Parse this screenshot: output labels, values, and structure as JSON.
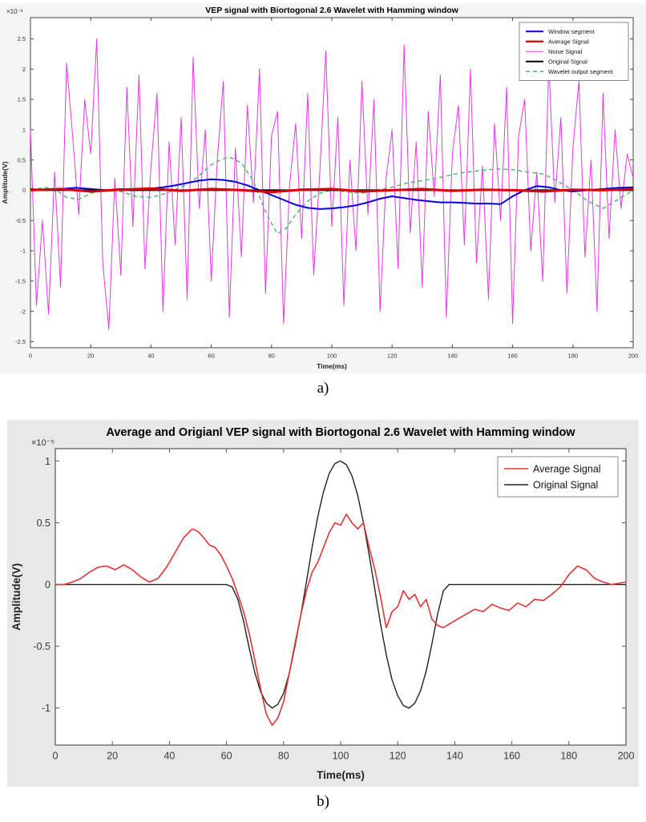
{
  "captions": {
    "fig_a": "a)",
    "fig_b": "b)"
  },
  "chart_data": [
    {
      "type": "line",
      "title": "VEP signal with Biortogonal 2.6 Wavelet with Hamming window",
      "xlabel": "Time(ms)",
      "ylabel": "Amplitude(V)",
      "y_scale_label": "×10⁻³",
      "xlim": [
        0,
        200
      ],
      "ylim": [
        -2.6,
        2.85
      ],
      "xticks": [
        0,
        20,
        40,
        60,
        80,
        100,
        120,
        140,
        160,
        180,
        200
      ],
      "yticks": [
        -2.5,
        -2,
        -1.5,
        -1,
        -0.5,
        0,
        0.5,
        1,
        1.5,
        2,
        2.5
      ],
      "grid": false,
      "legend_position": "top-right",
      "bg": "#f4f5f5",
      "series": [
        {
          "name": "Window segment",
          "color": "#0000e6",
          "width": 2,
          "dash": null,
          "z": 2,
          "x": [
            0,
            5,
            10,
            15,
            20,
            25,
            30,
            35,
            40,
            44,
            48,
            52,
            56,
            60,
            64,
            68,
            72,
            76,
            80,
            84,
            88,
            92,
            96,
            100,
            104,
            108,
            112,
            116,
            120,
            124,
            128,
            132,
            136,
            140,
            144,
            148,
            152,
            156,
            160,
            164,
            168,
            172,
            176,
            180,
            185,
            190,
            195,
            200
          ],
          "y": [
            0.02,
            0,
            0.02,
            0.04,
            0.02,
            0,
            0.02,
            0,
            0.03,
            0.05,
            0.08,
            0.12,
            0.16,
            0.18,
            0.17,
            0.14,
            0.08,
            0,
            -0.08,
            -0.16,
            -0.24,
            -0.29,
            -0.31,
            -0.3,
            -0.28,
            -0.25,
            -0.2,
            -0.14,
            -0.1,
            -0.13,
            -0.16,
            -0.18,
            -0.2,
            -0.2,
            -0.21,
            -0.22,
            -0.22,
            -0.23,
            -0.1,
            0,
            0.07,
            0.05,
            0,
            -0.02,
            0,
            0.02,
            0.04,
            0.05
          ]
        },
        {
          "name": "Average Signal",
          "color": "#dd0000",
          "width": 3,
          "dash": null,
          "z": 4,
          "x": [
            0,
            10,
            20,
            30,
            40,
            50,
            60,
            70,
            80,
            90,
            100,
            110,
            120,
            130,
            140,
            150,
            160,
            170,
            180,
            190,
            200
          ],
          "y": [
            0,
            0.02,
            -0.02,
            0.01,
            0.03,
            -0.01,
            0.02,
            0,
            -0.03,
            0.01,
            0.02,
            -0.02,
            0,
            0.02,
            -0.01,
            0.01,
            0,
            -0.02,
            0.01,
            0,
            0.02
          ]
        },
        {
          "name": "Noise Signal",
          "color": "#e736e7",
          "width": 1,
          "dash": null,
          "z": 0,
          "x_start": 0,
          "x_step": 2,
          "y": [
            1.0,
            -1.9,
            -0.5,
            -2.05,
            0.3,
            -1.6,
            2.1,
            0.9,
            -0.4,
            1.5,
            0.6,
            2.5,
            -1.2,
            -2.3,
            0.2,
            -1.4,
            1.7,
            -0.6,
            1.9,
            -1.3,
            0.4,
            1.6,
            -2.0,
            0.8,
            -0.9,
            1.2,
            -1.8,
            2.2,
            -0.3,
            1.0,
            -1.5,
            0.5,
            1.8,
            -2.1,
            0.7,
            -1.1,
            1.4,
            -0.2,
            2.0,
            -1.7,
            0.9,
            1.3,
            -2.2,
            0.1,
            1.1,
            -0.8,
            1.6,
            -1.4,
            0.3,
            2.3,
            -0.6,
            1.2,
            -1.9,
            0.5,
            -1.0,
            1.8,
            -0.4,
            1.5,
            -2.0,
            0.2,
            1.0,
            -1.3,
            2.4,
            -0.7,
            0.8,
            -1.6,
            1.3,
            -0.1,
            1.9,
            -2.1,
            0.6,
            1.4,
            -0.9,
            2.0,
            -1.2,
            0.4,
            -1.8,
            1.1,
            -0.5,
            1.7,
            -2.2,
            0.9,
            1.5,
            -1.0,
            0.3,
            -1.5,
            2.1,
            -0.2,
            1.2,
            -1.7,
            0.7,
            1.8,
            -1.1,
            0.5,
            -2.0,
            1.6,
            -0.8,
            1.0,
            -0.3,
            0.6,
            0.2
          ]
        },
        {
          "name": "Original Signal",
          "color": "#000000",
          "width": 2,
          "dash": null,
          "z": 3,
          "x": [
            0,
            50,
            100,
            150,
            200
          ],
          "y": [
            0,
            0,
            0,
            0,
            0
          ]
        },
        {
          "name": "Wavelet output segment",
          "color": "#3dbb63",
          "width": 1.4,
          "dash": "5 4",
          "z": 1,
          "x": [
            0,
            5,
            8,
            12,
            16,
            20,
            25,
            30,
            35,
            40,
            45,
            50,
            55,
            60,
            63,
            66,
            70,
            74,
            78,
            80,
            82,
            85,
            88,
            92,
            96,
            100,
            105,
            110,
            115,
            120,
            125,
            130,
            135,
            140,
            145,
            150,
            155,
            160,
            165,
            170,
            175,
            180,
            185,
            190,
            195,
            200
          ],
          "y": [
            0,
            0.05,
            0.02,
            -0.12,
            -0.15,
            -0.05,
            0,
            -0.02,
            -0.1,
            -0.12,
            -0.05,
            0.05,
            0.2,
            0.42,
            0.5,
            0.55,
            0.45,
            0.15,
            -0.35,
            -0.55,
            -0.72,
            -0.62,
            -0.4,
            -0.18,
            -0.05,
            0,
            -0.03,
            -0.05,
            0,
            0.05,
            0.12,
            0.16,
            0.2,
            0.26,
            0.3,
            0.33,
            0.35,
            0.34,
            0.3,
            0.27,
            0.15,
            0,
            -0.18,
            -0.3,
            -0.15,
            0
          ]
        }
      ]
    },
    {
      "type": "line",
      "title": "Average and Origianl VEP signal with Biortogonal 2.6 Wavelet with Hamming window",
      "xlabel": "Time(ms)",
      "ylabel": "Amplitude(V)",
      "y_scale_label": "×10⁻⁵",
      "xlim": [
        0,
        200
      ],
      "ylim": [
        -1.3,
        1.1
      ],
      "xticks": [
        0,
        20,
        40,
        60,
        80,
        100,
        120,
        140,
        160,
        180,
        200
      ],
      "yticks": [
        -1,
        -0.5,
        0,
        0.5,
        1
      ],
      "grid": false,
      "legend_position": "top-right",
      "bg": "#e7e8e8",
      "series": [
        {
          "name": "Average Signal",
          "color": "#e23333",
          "width": 1.6,
          "dash": null,
          "z": 2,
          "x": [
            0,
            3,
            6,
            9,
            12,
            15,
            18,
            21,
            24,
            27,
            30,
            33,
            36,
            39,
            42,
            45,
            48,
            50,
            52,
            54,
            56,
            58,
            60,
            62,
            64,
            66,
            68,
            70,
            72,
            74,
            76,
            78,
            80,
            82,
            84,
            86,
            88,
            90,
            92,
            94,
            96,
            98,
            100,
            102,
            104,
            106,
            108,
            110,
            112,
            114,
            116,
            118,
            120,
            122,
            124,
            126,
            128,
            130,
            132,
            134,
            136,
            138,
            141,
            144,
            147,
            150,
            153,
            156,
            159,
            162,
            165,
            168,
            171,
            174,
            177,
            180,
            183,
            186,
            189,
            192,
            195,
            200
          ],
          "y": [
            0,
            0,
            0.02,
            0.05,
            0.1,
            0.14,
            0.15,
            0.12,
            0.16,
            0.12,
            0.06,
            0.02,
            0.05,
            0.14,
            0.26,
            0.38,
            0.45,
            0.43,
            0.38,
            0.32,
            0.3,
            0.24,
            0.15,
            0.05,
            -0.08,
            -0.22,
            -0.4,
            -0.62,
            -0.85,
            -1.05,
            -1.14,
            -1.08,
            -0.95,
            -0.72,
            -0.48,
            -0.25,
            -0.05,
            0.1,
            0.18,
            0.3,
            0.42,
            0.5,
            0.48,
            0.57,
            0.5,
            0.45,
            0.5,
            0.3,
            0.12,
            -0.1,
            -0.35,
            -0.22,
            -0.18,
            -0.05,
            -0.12,
            -0.08,
            -0.18,
            -0.12,
            -0.28,
            -0.33,
            -0.35,
            -0.32,
            -0.28,
            -0.24,
            -0.2,
            -0.22,
            -0.16,
            -0.19,
            -0.21,
            -0.15,
            -0.18,
            -0.12,
            -0.13,
            -0.08,
            -0.02,
            0.08,
            0.15,
            0.12,
            0.05,
            0.02,
            0,
            0.02
          ]
        },
        {
          "name": "Original Signal",
          "color": "#222222",
          "width": 1.4,
          "dash": null,
          "z": 1,
          "x": [
            0,
            60,
            62,
            64,
            66,
            68,
            70,
            72,
            74,
            76,
            78,
            80,
            82,
            84,
            86,
            88,
            90,
            92,
            94,
            96,
            98,
            100,
            102,
            104,
            106,
            108,
            110,
            112,
            114,
            116,
            118,
            120,
            122,
            124,
            126,
            128,
            130,
            132,
            134,
            136,
            138,
            200
          ],
          "y": [
            0,
            0,
            -0.02,
            -0.12,
            -0.3,
            -0.52,
            -0.72,
            -0.87,
            -0.96,
            -1,
            -0.97,
            -0.88,
            -0.72,
            -0.5,
            -0.25,
            0.02,
            0.3,
            0.55,
            0.75,
            0.9,
            0.98,
            1,
            0.97,
            0.88,
            0.72,
            0.5,
            0.24,
            -0.04,
            -0.32,
            -0.57,
            -0.77,
            -0.9,
            -0.98,
            -1,
            -0.96,
            -0.86,
            -0.7,
            -0.48,
            -0.24,
            -0.05,
            0,
            0
          ]
        }
      ]
    }
  ]
}
